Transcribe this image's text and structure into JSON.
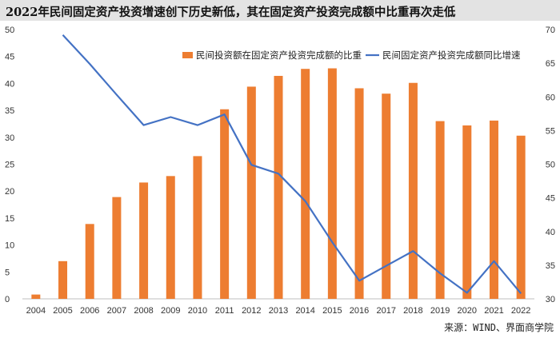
{
  "title": "2022年民间固定资产投资增速创下历史新低，其在固定资产投资完成额中比重再次走低",
  "source": "来源：WIND、界面商学院",
  "chart_data": {
    "type": "bar",
    "categories": [
      "2004",
      "2005",
      "2006",
      "2007",
      "2008",
      "2009",
      "2010",
      "2011",
      "2012",
      "2013",
      "2014",
      "2015",
      "2016",
      "2017",
      "2018",
      "2019",
      "2020",
      "2021",
      "2022"
    ],
    "series": [
      {
        "name": "民间投资额在固定资产投资完成额的比重",
        "type": "bar",
        "axis": "left",
        "color": "#ed7d31",
        "values": [
          0.8,
          7.0,
          13.9,
          18.9,
          21.6,
          22.8,
          26.5,
          35.2,
          39.4,
          41.4,
          42.7,
          42.8,
          39.1,
          38.1,
          40.1,
          33.0,
          32.2,
          33.1,
          30.3
        ]
      },
      {
        "name": "民间固定资产投资完成额同比增速",
        "type": "line",
        "axis": "right",
        "color": "#4472c4",
        "values": [
          null,
          69.2,
          64.9,
          60.3,
          55.8,
          57.0,
          55.8,
          57.4,
          49.9,
          48.6,
          44.5,
          38.4,
          32.7,
          34.9,
          37.1,
          33.8,
          30.9,
          35.6,
          30.8
        ]
      }
    ],
    "yleft": {
      "min": 0,
      "max": 50,
      "ticks": [
        0,
        5,
        10,
        15,
        20,
        25,
        30,
        35,
        40,
        45,
        50
      ]
    },
    "yright": {
      "min": 30,
      "max": 70,
      "ticks": [
        30,
        35,
        40,
        45,
        50,
        55,
        60,
        65,
        70
      ]
    },
    "grid": false,
    "legend_position": "top-right"
  }
}
